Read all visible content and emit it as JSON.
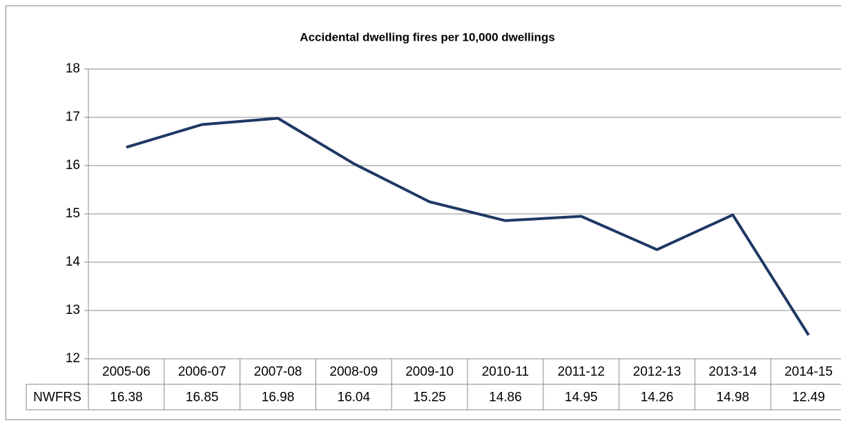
{
  "chart_data": {
    "type": "line",
    "title": "Accidental  dwelling  fires per 10,000 dwellings",
    "categories": [
      "2005-06",
      "2006-07",
      "2007-08",
      "2008-09",
      "2009-10",
      "2010-11",
      "2011-12",
      "2012-13",
      "2013-14",
      "2014-15"
    ],
    "series": [
      {
        "name": "NWFRS",
        "color": "#1f3864",
        "values": [
          16.38,
          16.85,
          16.98,
          16.04,
          15.25,
          14.86,
          14.95,
          14.26,
          14.98,
          12.49
        ]
      }
    ],
    "ylim": [
      12,
      18
    ],
    "yticks": [
      12,
      13,
      14,
      15,
      16,
      17,
      18
    ],
    "grid": true,
    "data_table": true
  }
}
